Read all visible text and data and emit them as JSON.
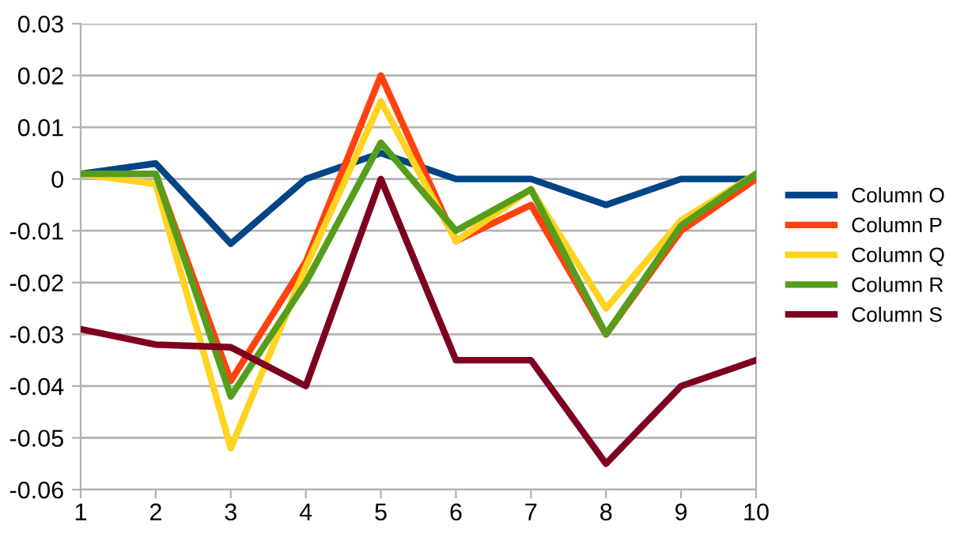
{
  "chart_data": {
    "type": "line",
    "categories": [
      "1",
      "2",
      "3",
      "4",
      "5",
      "6",
      "7",
      "8",
      "9",
      "10"
    ],
    "series": [
      {
        "name": "Column O",
        "color": "#004586",
        "values": [
          0.001,
          0.003,
          -0.0125,
          0,
          0.005,
          0,
          0,
          -0.005,
          0,
          0
        ]
      },
      {
        "name": "Column P",
        "color": "#ff420e",
        "values": [
          0.001,
          0.001,
          -0.039,
          -0.016,
          0.02,
          -0.012,
          -0.005,
          -0.03,
          -0.01,
          0
        ]
      },
      {
        "name": "Column Q",
        "color": "#ffd320",
        "values": [
          0.001,
          -0.001,
          -0.052,
          -0.017,
          0.015,
          -0.012,
          -0.002,
          -0.025,
          -0.008,
          0.001
        ]
      },
      {
        "name": "Column R",
        "color": "#579d1c",
        "values": [
          0.001,
          0.001,
          -0.042,
          -0.02,
          0.007,
          -0.01,
          -0.002,
          -0.03,
          -0.009,
          0.001
        ]
      },
      {
        "name": "Column S",
        "color": "#7e0021",
        "values": [
          -0.029,
          -0.032,
          -0.0325,
          -0.04,
          0,
          -0.035,
          -0.035,
          -0.055,
          -0.04,
          -0.035
        ]
      }
    ],
    "ylim": [
      -0.06,
      0.03
    ],
    "yticks": [
      -0.06,
      -0.05,
      -0.04,
      -0.03,
      -0.02,
      -0.01,
      0,
      0.01,
      0.02,
      0.03
    ],
    "grid": "y",
    "legend": "right",
    "marker": "none",
    "line_style": "solid"
  }
}
